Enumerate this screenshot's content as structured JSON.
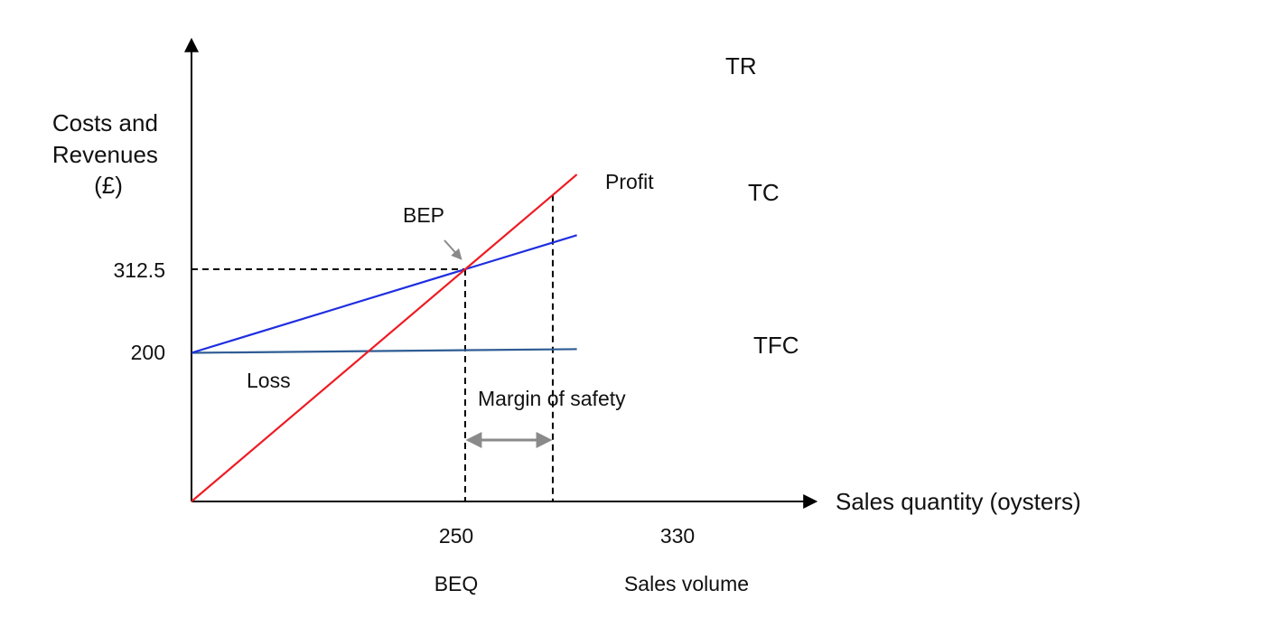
{
  "chart_data": {
    "type": "line",
    "title": "",
    "xlabel": "Sales quantity (oysters)",
    "ylabel_lines": [
      "Costs and",
      "Revenues",
      "(£)"
    ],
    "series": [
      {
        "name": "TR",
        "color": "#ee1c24",
        "points": [
          [
            0,
            0
          ],
          [
            250,
            312.5
          ],
          [
            330,
            412.5
          ],
          [
            352,
            440
          ]
        ]
      },
      {
        "name": "TC",
        "color": "#1f2ee0",
        "points": [
          [
            0,
            200
          ],
          [
            250,
            312.5
          ],
          [
            330,
            348.5
          ],
          [
            352,
            358.4
          ]
        ]
      },
      {
        "name": "TFC",
        "color": "#2e5c94",
        "points": [
          [
            0,
            200
          ],
          [
            352,
            205
          ]
        ]
      }
    ],
    "x_ticks": [
      {
        "value": 250,
        "label": "250",
        "sublabel": "BEQ"
      },
      {
        "value": 330,
        "label": "330",
        "sublabel": "Sales volume"
      }
    ],
    "y_ticks": [
      {
        "value": 200,
        "label": "200"
      },
      {
        "value": 312.5,
        "label": "312.5"
      }
    ],
    "annotations": {
      "bep": "BEP",
      "profit": "Profit",
      "loss": "Loss",
      "margin": "Margin of safety"
    },
    "xlim": [
      0,
      400
    ],
    "ylim": [
      0,
      500
    ],
    "grid": false
  }
}
